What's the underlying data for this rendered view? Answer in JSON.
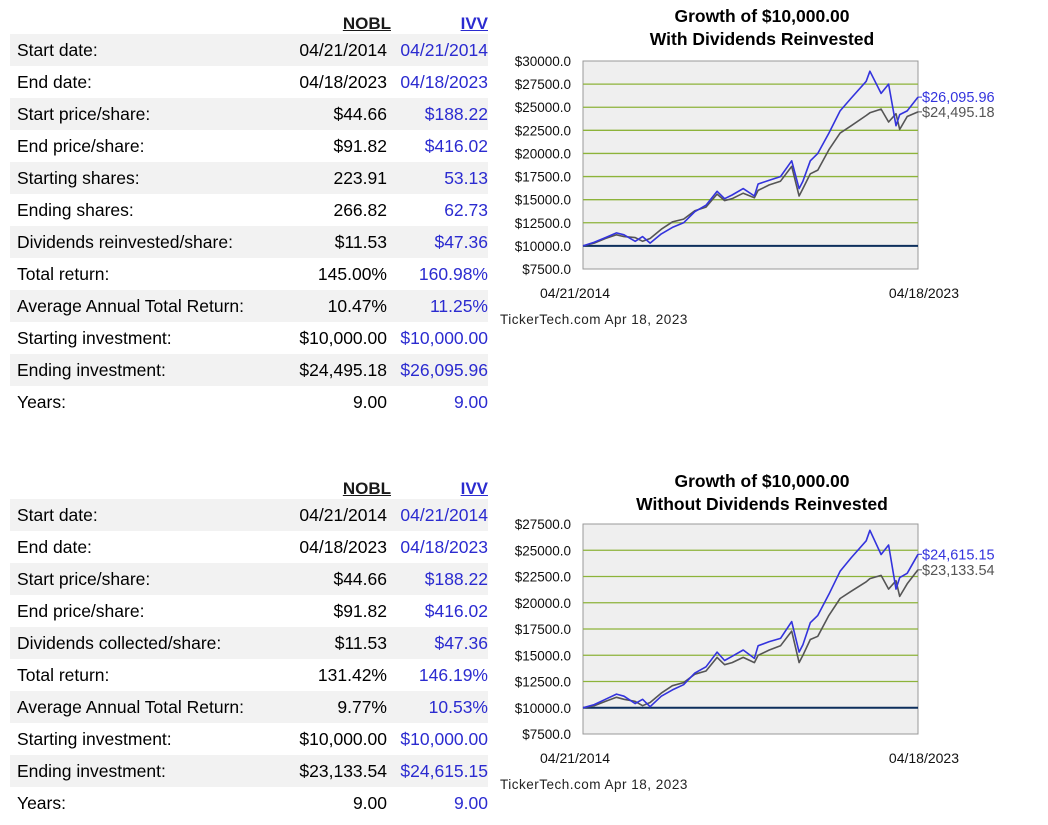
{
  "sections": [
    {
      "header": {
        "a": "NOBL",
        "b": "IVV"
      },
      "rows": [
        {
          "label": "Start date:",
          "a": "04/21/2014",
          "b": "04/21/2014"
        },
        {
          "label": "End date:",
          "a": "04/18/2023",
          "b": "04/18/2023"
        },
        {
          "label": "Start price/share:",
          "a": "$44.66",
          "b": "$188.22"
        },
        {
          "label": "End price/share:",
          "a": "$91.82",
          "b": "$416.02"
        },
        {
          "label": "Starting shares:",
          "a": "223.91",
          "b": "53.13"
        },
        {
          "label": "Ending shares:",
          "a": "266.82",
          "b": "62.73"
        },
        {
          "label": "Dividends reinvested/share:",
          "a": "$11.53",
          "b": "$47.36"
        },
        {
          "label": "Total return:",
          "a": "145.00%",
          "b": "160.98%"
        },
        {
          "label": "Average Annual Total Return:",
          "a": "10.47%",
          "b": "11.25%"
        },
        {
          "label": "Starting investment:",
          "a": "$10,000.00",
          "b": "$10,000.00"
        },
        {
          "label": "Ending investment:",
          "a": "$24,495.18",
          "b": "$26,095.96"
        },
        {
          "label": "Years:",
          "a": "9.00",
          "b": "9.00"
        }
      ],
      "chart_title_1": "Growth of $10,000.00",
      "chart_title_2": "With Dividends Reinvested",
      "credit": "TickerTech.com  Apr 18, 2023"
    },
    {
      "header": {
        "a": "NOBL",
        "b": "IVV"
      },
      "rows": [
        {
          "label": "Start date:",
          "a": "04/21/2014",
          "b": "04/21/2014"
        },
        {
          "label": "End date:",
          "a": "04/18/2023",
          "b": "04/18/2023"
        },
        {
          "label": "Start price/share:",
          "a": "$44.66",
          "b": "$188.22"
        },
        {
          "label": "End price/share:",
          "a": "$91.82",
          "b": "$416.02"
        },
        {
          "label": "Dividends collected/share:",
          "a": "$11.53",
          "b": "$47.36"
        },
        {
          "label": "Total return:",
          "a": "131.42%",
          "b": "146.19%"
        },
        {
          "label": "Average Annual Total Return:",
          "a": "9.77%",
          "b": "10.53%"
        },
        {
          "label": "Starting investment:",
          "a": "$10,000.00",
          "b": "$10,000.00"
        },
        {
          "label": "Ending investment:",
          "a": "$23,133.54",
          "b": "$24,615.15"
        },
        {
          "label": "Years:",
          "a": "9.00",
          "b": "9.00"
        }
      ],
      "chart_title_1": "Growth of $10,000.00",
      "chart_title_2": "Without Dividends Reinvested",
      "credit": "TickerTech.com  Apr 18, 2023"
    }
  ],
  "colors": {
    "nobl": "#555555",
    "ivv": "#3333dd",
    "grid": "#8db33a",
    "plot_bg": "#efefef",
    "baseline": "#0d2f5c"
  },
  "chart_data": [
    {
      "type": "line",
      "title": "Growth of $10,000.00 With Dividends Reinvested",
      "x": [
        "2014.30",
        "2014.60",
        "2014.90",
        "2015.20",
        "2015.40",
        "2015.70",
        "2015.90",
        "2016.10",
        "2016.40",
        "2016.70",
        "2017.00",
        "2017.30",
        "2017.60",
        "2017.90",
        "2018.10",
        "2018.30",
        "2018.60",
        "2018.90",
        "2019.00",
        "2019.30",
        "2019.60",
        "2019.90",
        "2020.10",
        "2020.20",
        "2020.40",
        "2020.60",
        "2020.90",
        "2021.20",
        "2021.50",
        "2021.90",
        "2022.00",
        "2022.30",
        "2022.50",
        "2022.70",
        "2022.80",
        "2023.00",
        "2023.29"
      ],
      "xtick_labels": [
        "04/21/2014",
        "04/18/2023"
      ],
      "ylim": [
        7500,
        30000
      ],
      "yticks": [
        "$30000.0",
        "$27500.0",
        "$25000.0",
        "$22500.0",
        "$20000.0",
        "$17500.0",
        "$15000.0",
        "$12500.0",
        "$10000.0",
        "$7500.0"
      ],
      "grid": true,
      "series": [
        {
          "values": [
            10000,
            10300,
            10800,
            11200,
            11000,
            10900,
            10500,
            10800,
            11800,
            12600,
            12900,
            13800,
            14200,
            15600,
            14900,
            15100,
            15700,
            15200,
            16000,
            16600,
            17000,
            18600,
            15400,
            16200,
            17800,
            18200,
            20400,
            22200,
            23000,
            24100,
            24400,
            24800,
            23400,
            24300,
            22600,
            24000,
            24495.18
          ],
          "end_label": "$24,495.18"
        },
        {
          "values": [
            10000,
            10400,
            10900,
            11400,
            11200,
            10500,
            11000,
            10300,
            11300,
            12000,
            12500,
            13700,
            14400,
            15900,
            15100,
            15500,
            16200,
            15400,
            16700,
            17100,
            17500,
            19200,
            16200,
            17000,
            19200,
            20000,
            22200,
            24600,
            26000,
            27800,
            28900,
            26500,
            27500,
            23000,
            24200,
            24600,
            26095.96
          ],
          "end_label": "$26,095.96"
        }
      ]
    },
    {
      "type": "line",
      "title": "Growth of $10,000.00 Without Dividends Reinvested",
      "x": [
        "2014.30",
        "2014.60",
        "2014.90",
        "2015.20",
        "2015.40",
        "2015.70",
        "2015.90",
        "2016.10",
        "2016.40",
        "2016.70",
        "2017.00",
        "2017.30",
        "2017.60",
        "2017.90",
        "2018.10",
        "2018.30",
        "2018.60",
        "2018.90",
        "2019.00",
        "2019.30",
        "2019.60",
        "2019.90",
        "2020.10",
        "2020.20",
        "2020.40",
        "2020.60",
        "2020.90",
        "2021.20",
        "2021.50",
        "2021.90",
        "2022.00",
        "2022.30",
        "2022.50",
        "2022.70",
        "2022.80",
        "2023.00",
        "2023.29"
      ],
      "xtick_labels": [
        "04/21/2014",
        "04/18/2023"
      ],
      "ylim": [
        7500,
        27500
      ],
      "yticks": [
        "$27500.0",
        "$25000.0",
        "$22500.0",
        "$20000.0",
        "$17500.0",
        "$15000.0",
        "$12500.0",
        "$10000.0",
        "$7500.0"
      ],
      "grid": true,
      "series": [
        {
          "values": [
            10000,
            10200,
            10600,
            11000,
            10800,
            10600,
            10200,
            10500,
            11400,
            12100,
            12400,
            13200,
            13500,
            14800,
            14100,
            14300,
            14800,
            14300,
            15000,
            15500,
            15900,
            17300,
            14300,
            15000,
            16500,
            16800,
            18800,
            20400,
            21100,
            22000,
            22300,
            22600,
            21300,
            22100,
            20600,
            21800,
            23133.54
          ],
          "end_label": "$23,133.54"
        },
        {
          "values": [
            10000,
            10300,
            10800,
            11300,
            11100,
            10400,
            10800,
            10100,
            11100,
            11700,
            12200,
            13300,
            13900,
            15300,
            14500,
            14900,
            15500,
            14700,
            15900,
            16300,
            16600,
            18200,
            15300,
            16000,
            18100,
            18800,
            20800,
            23000,
            24300,
            25900,
            26900,
            24600,
            25500,
            21300,
            22400,
            22800,
            24615.15
          ],
          "end_label": "$24,615.15"
        }
      ]
    }
  ]
}
